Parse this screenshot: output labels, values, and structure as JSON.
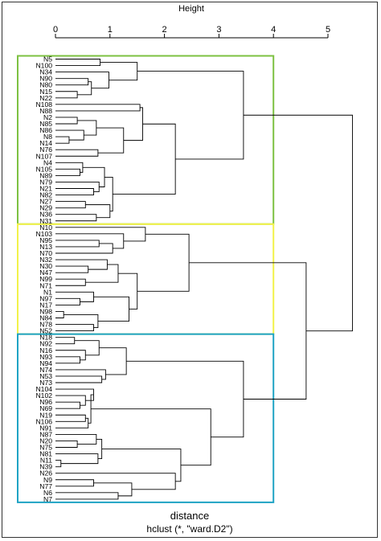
{
  "chart_data": {
    "type": "dendrogram",
    "title": "",
    "xlabel": "distance",
    "sublabel": "hclust (*, \"ward.D2\")",
    "axis_title": "Height",
    "axis_ticks": [
      "0",
      "1",
      "2",
      "3",
      "4",
      "5"
    ],
    "xlim": [
      0,
      5.6
    ],
    "orientation": "horizontal",
    "leaves": [
      "N5",
      "N100",
      "N34",
      "N90",
      "N80",
      "N15",
      "N22",
      "N108",
      "N88",
      "N2",
      "N85",
      "N86",
      "N8",
      "N14",
      "N76",
      "N107",
      "N4",
      "N105",
      "N89",
      "N79",
      "N21",
      "N82",
      "N27",
      "N29",
      "N36",
      "N31",
      "N10",
      "N103",
      "N95",
      "N13",
      "N70",
      "N32",
      "N30",
      "N47",
      "N99",
      "N71",
      "N1",
      "N97",
      "N17",
      "N98",
      "N84",
      "N78",
      "N52",
      "N18",
      "N92",
      "N16",
      "N93",
      "N94",
      "N74",
      "N53",
      "N73",
      "N104",
      "N102",
      "N96",
      "N69",
      "N19",
      "N106",
      "N91",
      "N87",
      "N20",
      "N75",
      "N81",
      "N11",
      "N39",
      "N26",
      "N9",
      "N77",
      "N6",
      "N7"
    ],
    "merges": [
      {
        "a": "N5",
        "b": "N100",
        "h": 0.82
      },
      {
        "a": "N90",
        "b": "N80",
        "h": 0.6
      },
      {
        "a": "N15",
        "b": "N22",
        "h": 0.4
      },
      {
        "a": "c2",
        "b": "c3",
        "h": 0.66
      },
      {
        "a": "N34",
        "b": "c4",
        "h": 0.98
      },
      {
        "a": "c1",
        "b": "c5",
        "h": 1.5
      },
      {
        "a": "N108",
        "b": "N88",
        "h": 1.55
      },
      {
        "a": "N2",
        "b": "N85",
        "h": 0.4
      },
      {
        "a": "N8",
        "b": "N14",
        "h": 0.25
      },
      {
        "a": "N86",
        "b": "c9",
        "h": 0.52
      },
      {
        "a": "c8",
        "b": "c10",
        "h": 0.75
      },
      {
        "a": "N76",
        "b": "N107",
        "h": 0.78
      },
      {
        "a": "c11",
        "b": "c12",
        "h": 1.25
      },
      {
        "a": "c7",
        "b": "c13",
        "h": 1.6
      },
      {
        "a": "N105",
        "b": "N89",
        "h": 0.45
      },
      {
        "a": "N4",
        "b": "c15",
        "h": 0.5
      },
      {
        "a": "N21",
        "b": "N82",
        "h": 0.7
      },
      {
        "a": "N79",
        "b": "c17",
        "h": 0.8
      },
      {
        "a": "c16",
        "b": "c18",
        "h": 0.9
      },
      {
        "a": "N27",
        "b": "N29",
        "h": 0.55
      },
      {
        "a": "N36",
        "b": "N31",
        "h": 0.75
      },
      {
        "a": "c20",
        "b": "c21",
        "h": 1.0
      },
      {
        "a": "c19",
        "b": "c22",
        "h": 1.05
      },
      {
        "a": "c14",
        "b": "c23",
        "h": 2.2
      },
      {
        "a": "c6",
        "b": "c24",
        "h": 3.45
      },
      {
        "a": "N95",
        "b": "N13",
        "h": 0.8
      },
      {
        "a": "c26",
        "b": "N70",
        "h": 1.05
      },
      {
        "a": "N103",
        "b": "c27",
        "h": 1.25
      },
      {
        "a": "N10",
        "b": "c28",
        "h": 1.65
      },
      {
        "a": "N30",
        "b": "N47",
        "h": 0.6
      },
      {
        "a": "N32",
        "b": "c30",
        "h": 0.95
      },
      {
        "a": "N99",
        "b": "N71",
        "h": 0.55
      },
      {
        "a": "c31",
        "b": "c32",
        "h": 1.15
      },
      {
        "a": "N97",
        "b": "N17",
        "h": 0.45
      },
      {
        "a": "N1",
        "b": "c34",
        "h": 0.7
      },
      {
        "a": "N98",
        "b": "N84",
        "h": 0.15
      },
      {
        "a": "N78",
        "b": "N52",
        "h": 0.7
      },
      {
        "a": "c36",
        "b": "c37",
        "h": 0.78
      },
      {
        "a": "c35",
        "b": "c38",
        "h": 1.35
      },
      {
        "a": "c33",
        "b": "c39",
        "h": 1.5
      },
      {
        "a": "c29",
        "b": "c40",
        "h": 2.45
      },
      {
        "a": "N18",
        "b": "N92",
        "h": 0.35
      },
      {
        "a": "N93",
        "b": "N94",
        "h": 0.45
      },
      {
        "a": "N16",
        "b": "c43",
        "h": 0.55
      },
      {
        "a": "c42",
        "b": "c44",
        "h": 0.8
      },
      {
        "a": "N53",
        "b": "N73",
        "h": 0.85
      },
      {
        "a": "N74",
        "b": "c46",
        "h": 0.92
      },
      {
        "a": "c45",
        "b": "c47",
        "h": 1.3
      },
      {
        "a": "N96",
        "b": "N69",
        "h": 0.45
      },
      {
        "a": "N102",
        "b": "c49",
        "h": 0.55
      },
      {
        "a": "N104",
        "b": "c50",
        "h": 0.7
      },
      {
        "a": "N19",
        "b": "N106",
        "h": 0.55
      },
      {
        "a": "c52",
        "b": "N91",
        "h": 0.6
      },
      {
        "a": "c51",
        "b": "c53",
        "h": 0.65
      },
      {
        "a": "N20",
        "b": "N75",
        "h": 0.4
      },
      {
        "a": "N87",
        "b": "c55",
        "h": 0.75
      },
      {
        "a": "N11",
        "b": "N39",
        "h": 0.1
      },
      {
        "a": "N81",
        "b": "c57",
        "h": 0.78
      },
      {
        "a": "c56",
        "b": "c58",
        "h": 0.85
      },
      {
        "a": "N9",
        "b": "N77",
        "h": 0.7
      },
      {
        "a": "N6",
        "b": "N7",
        "h": 1.15
      },
      {
        "a": "c60",
        "b": "c61",
        "h": 1.4
      },
      {
        "a": "N26",
        "b": "c62",
        "h": 2.2
      },
      {
        "a": "c59",
        "b": "c63",
        "h": 2.3
      },
      {
        "a": "c54",
        "b": "c64",
        "h": 2.85
      },
      {
        "a": "c48",
        "b": "c65",
        "h": 3.45
      },
      {
        "a": "c41",
        "b": "c66",
        "h": 4.6
      },
      {
        "a": "c25",
        "b": "c67",
        "h": 5.45
      }
    ],
    "clusters": [
      {
        "first": "N5",
        "last": "N31",
        "color": "#7dc142"
      },
      {
        "first": "N10",
        "last": "N52",
        "color": "#f2f24a"
      },
      {
        "first": "N18",
        "last": "N7",
        "color": "#1fa3c4"
      }
    ]
  }
}
